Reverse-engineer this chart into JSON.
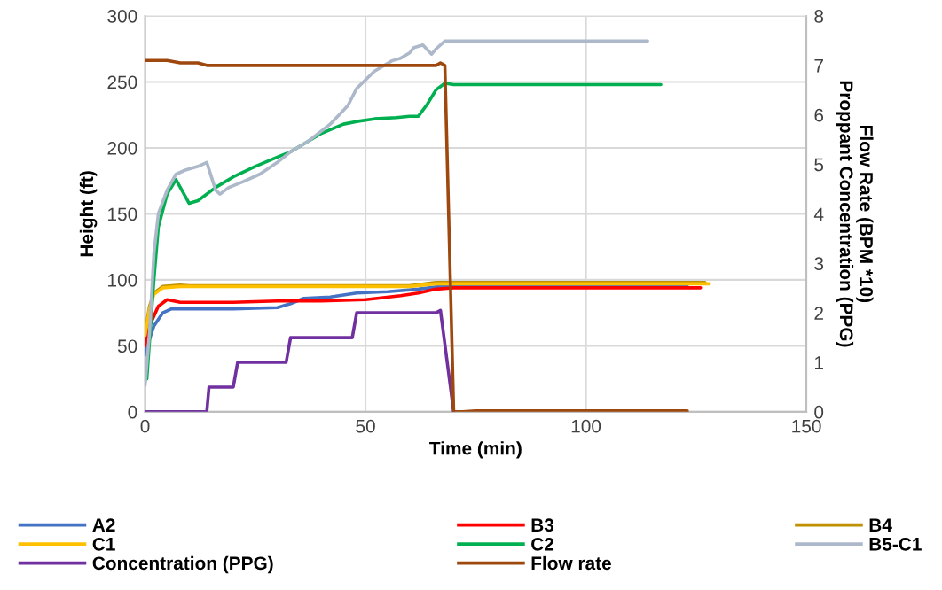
{
  "chart_data": {
    "type": "line",
    "xlabel": "Time (min)",
    "ylabel": "Height (ft)",
    "y2label": "Flow Rate (BPM *10)\nProppant Concentration (PPG)",
    "xlim": [
      0,
      150
    ],
    "xticks": [
      0,
      50,
      100,
      150
    ],
    "ylim": [
      0,
      300
    ],
    "yticks": [
      0,
      50,
      100,
      150,
      200,
      250,
      300
    ],
    "y2lim": [
      0,
      8
    ],
    "y2ticks": [
      0,
      1,
      2,
      3,
      4,
      5,
      6,
      7,
      8
    ],
    "grid": true,
    "legend": "bottom",
    "marker": "none",
    "line_style": "solid",
    "series": [
      {
        "name": "A2",
        "color": "#4472c4",
        "x": [
          0,
          1,
          2,
          4,
          6,
          10,
          20,
          30,
          33,
          36,
          42,
          48,
          55,
          62,
          67,
          75,
          123
        ],
        "values": [
          43,
          55,
          65,
          75,
          78,
          78,
          78,
          79,
          82,
          86,
          87,
          90,
          91,
          93,
          95,
          95,
          95
        ]
      },
      {
        "name": "B3",
        "color": "#ff0000",
        "x": [
          0,
          1,
          3,
          5,
          8,
          20,
          30,
          40,
          50,
          58,
          62,
          66,
          70,
          126
        ],
        "values": [
          50,
          65,
          80,
          85,
          83,
          83,
          84,
          84,
          85,
          88,
          90,
          93,
          94,
          94
        ]
      },
      {
        "name": "B4",
        "color": "#bf9000",
        "x": [
          0,
          1,
          2,
          4,
          8,
          10,
          60,
          66,
          127
        ],
        "values": [
          60,
          80,
          90,
          95,
          96,
          95.5,
          95.5,
          98,
          98
        ]
      },
      {
        "name": "C1",
        "color": "#ffc000",
        "x": [
          0,
          1,
          2,
          4,
          8,
          10,
          60,
          66,
          128
        ],
        "values": [
          58,
          78,
          89,
          94,
          95,
          95,
          95,
          97,
          97
        ]
      },
      {
        "name": "C2",
        "color": "#00b050",
        "x": [
          0.4,
          2,
          3,
          5,
          7,
          8,
          10,
          12,
          16,
          20,
          25,
          30,
          33,
          37,
          40,
          45,
          48,
          52,
          57,
          60,
          62,
          64,
          66,
          68,
          70,
          117
        ],
        "values": [
          25,
          100,
          140,
          165,
          176,
          170,
          158,
          160,
          170,
          178,
          186,
          193,
          197,
          205,
          211,
          218,
          220,
          222,
          223,
          224,
          224,
          233,
          244,
          249,
          248,
          248
        ]
      },
      {
        "name": "B5-C1",
        "color": "#adb9ca",
        "x": [
          0,
          1,
          2,
          3,
          5,
          7,
          9,
          12,
          14,
          16,
          17,
          19,
          22,
          26,
          30,
          33,
          37,
          42,
          46,
          48,
          52,
          56,
          58,
          60,
          61,
          63,
          65,
          66,
          68,
          72,
          114
        ],
        "values": [
          20,
          60,
          120,
          150,
          168,
          180,
          183,
          186,
          189,
          168,
          165,
          170,
          174,
          180,
          189,
          197,
          205,
          218,
          232,
          245,
          258,
          266,
          268,
          272,
          276,
          278,
          271,
          275,
          281,
          281,
          281
        ]
      },
      {
        "name": "Concentration (PPG)",
        "color": "#7030a0",
        "axis": "y2",
        "x": [
          0,
          14,
          14.5,
          20,
          21,
          32,
          33,
          47,
          48,
          66,
          67,
          70
        ],
        "values": [
          0,
          0,
          0.5,
          0.5,
          1.0,
          1.0,
          1.5,
          1.5,
          2.0,
          2.0,
          2.05,
          0
        ]
      },
      {
        "name": "Flow rate",
        "color": "#9e480e",
        "axis": "y2",
        "x": [
          0,
          5,
          8,
          12,
          14,
          66,
          67,
          68,
          70,
          72,
          75,
          123
        ],
        "values": [
          7.1,
          7.1,
          7.05,
          7.05,
          7.0,
          7.0,
          7.05,
          7.0,
          0,
          0,
          0.02,
          0.02
        ]
      }
    ]
  }
}
